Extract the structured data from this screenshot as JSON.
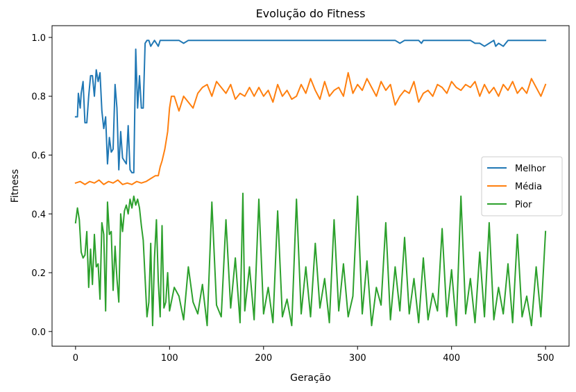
{
  "chart_data": {
    "type": "line",
    "title": "Evolução do Fitness",
    "xlabel": "Geração",
    "ylabel": "Fitness",
    "xlim": [
      -25,
      525
    ],
    "ylim": [
      -0.05,
      1.04
    ],
    "xticks": [
      0,
      100,
      200,
      300,
      400,
      500
    ],
    "yticks": [
      0.0,
      0.2,
      0.4,
      0.6,
      0.8,
      1.0
    ],
    "grid": false,
    "legend_position": "center-right",
    "series": [
      {
        "name": "Melhor",
        "color": "#1f77b4",
        "x": [
          0,
          2,
          3,
          5,
          6,
          8,
          10,
          12,
          14,
          16,
          18,
          20,
          22,
          24,
          26,
          28,
          30,
          32,
          34,
          36,
          38,
          40,
          42,
          44,
          46,
          48,
          50,
          52,
          54,
          56,
          58,
          60,
          62,
          64,
          66,
          68,
          70,
          72,
          74,
          76,
          78,
          80,
          82,
          84,
          86,
          88,
          90,
          95,
          100,
          110,
          115,
          120,
          150,
          200,
          250,
          300,
          340,
          345,
          350,
          365,
          368,
          370,
          380,
          400,
          420,
          425,
          430,
          435,
          440,
          445,
          447,
          450,
          455,
          460,
          480,
          500
        ],
        "y": [
          0.73,
          0.73,
          0.81,
          0.76,
          0.81,
          0.85,
          0.71,
          0.71,
          0.8,
          0.87,
          0.87,
          0.8,
          0.89,
          0.85,
          0.88,
          0.75,
          0.69,
          0.73,
          0.57,
          0.66,
          0.61,
          0.62,
          0.84,
          0.76,
          0.55,
          0.68,
          0.59,
          0.58,
          0.57,
          0.7,
          0.55,
          0.54,
          0.54,
          0.96,
          0.76,
          0.87,
          0.76,
          0.76,
          0.98,
          0.99,
          0.99,
          0.97,
          0.98,
          0.99,
          0.98,
          0.97,
          0.99,
          0.99,
          0.99,
          0.99,
          0.98,
          0.99,
          0.99,
          0.99,
          0.99,
          0.99,
          0.99,
          0.98,
          0.99,
          0.99,
          0.98,
          0.99,
          0.99,
          0.99,
          0.99,
          0.98,
          0.98,
          0.97,
          0.98,
          0.99,
          0.97,
          0.98,
          0.97,
          0.99,
          0.99,
          0.99
        ]
      },
      {
        "name": "Média",
        "color": "#ff7f0e",
        "x": [
          0,
          5,
          10,
          15,
          20,
          25,
          30,
          35,
          40,
          45,
          50,
          55,
          60,
          65,
          70,
          75,
          80,
          85,
          88,
          90,
          92,
          95,
          98,
          100,
          102,
          105,
          110,
          115,
          120,
          125,
          130,
          135,
          140,
          145,
          150,
          155,
          160,
          165,
          170,
          175,
          180,
          185,
          190,
          195,
          200,
          205,
          210,
          215,
          220,
          225,
          230,
          235,
          240,
          245,
          250,
          255,
          260,
          265,
          270,
          275,
          280,
          285,
          290,
          295,
          300,
          305,
          310,
          315,
          320,
          325,
          330,
          335,
          340,
          345,
          350,
          355,
          360,
          365,
          370,
          375,
          380,
          385,
          390,
          395,
          400,
          405,
          410,
          415,
          420,
          425,
          430,
          435,
          440,
          445,
          450,
          455,
          460,
          465,
          470,
          475,
          480,
          485,
          490,
          495,
          500
        ],
        "y": [
          0.505,
          0.51,
          0.5,
          0.51,
          0.505,
          0.515,
          0.5,
          0.51,
          0.505,
          0.515,
          0.5,
          0.505,
          0.5,
          0.51,
          0.505,
          0.51,
          0.52,
          0.53,
          0.53,
          0.56,
          0.58,
          0.62,
          0.68,
          0.76,
          0.8,
          0.8,
          0.75,
          0.8,
          0.78,
          0.76,
          0.81,
          0.83,
          0.84,
          0.8,
          0.85,
          0.83,
          0.81,
          0.84,
          0.79,
          0.81,
          0.8,
          0.83,
          0.8,
          0.83,
          0.8,
          0.82,
          0.78,
          0.84,
          0.8,
          0.82,
          0.79,
          0.8,
          0.84,
          0.81,
          0.86,
          0.82,
          0.79,
          0.85,
          0.8,
          0.82,
          0.83,
          0.8,
          0.88,
          0.81,
          0.84,
          0.82,
          0.86,
          0.83,
          0.8,
          0.85,
          0.82,
          0.84,
          0.77,
          0.8,
          0.82,
          0.81,
          0.85,
          0.78,
          0.81,
          0.82,
          0.8,
          0.84,
          0.83,
          0.81,
          0.85,
          0.83,
          0.82,
          0.84,
          0.83,
          0.85,
          0.8,
          0.84,
          0.81,
          0.83,
          0.8,
          0.84,
          0.82,
          0.85,
          0.81,
          0.83,
          0.81,
          0.86,
          0.83,
          0.8,
          0.84
        ]
      },
      {
        "name": "Pior",
        "color": "#2ca02c",
        "x": [
          0,
          2,
          4,
          6,
          8,
          10,
          12,
          14,
          16,
          18,
          20,
          22,
          24,
          26,
          28,
          30,
          32,
          34,
          36,
          38,
          40,
          42,
          44,
          46,
          48,
          50,
          52,
          54,
          56,
          58,
          60,
          62,
          64,
          66,
          68,
          70,
          72,
          74,
          76,
          78,
          80,
          82,
          84,
          86,
          88,
          90,
          92,
          94,
          96,
          98,
          100,
          105,
          110,
          115,
          120,
          125,
          130,
          135,
          140,
          145,
          150,
          155,
          160,
          165,
          170,
          175,
          178,
          180,
          185,
          190,
          195,
          200,
          205,
          210,
          215,
          220,
          225,
          230,
          235,
          240,
          245,
          250,
          255,
          260,
          265,
          270,
          275,
          280,
          285,
          290,
          295,
          300,
          305,
          310,
          315,
          320,
          325,
          330,
          335,
          340,
          345,
          350,
          355,
          360,
          365,
          370,
          375,
          380,
          385,
          390,
          395,
          400,
          405,
          410,
          415,
          420,
          425,
          430,
          435,
          440,
          445,
          450,
          455,
          460,
          465,
          470,
          475,
          480,
          485,
          490,
          495,
          500
        ],
        "y": [
          0.37,
          0.42,
          0.38,
          0.27,
          0.25,
          0.26,
          0.34,
          0.15,
          0.28,
          0.16,
          0.33,
          0.22,
          0.23,
          0.11,
          0.37,
          0.33,
          0.07,
          0.44,
          0.33,
          0.34,
          0.14,
          0.29,
          0.18,
          0.1,
          0.4,
          0.34,
          0.41,
          0.43,
          0.4,
          0.45,
          0.42,
          0.46,
          0.43,
          0.45,
          0.42,
          0.36,
          0.31,
          0.18,
          0.05,
          0.1,
          0.3,
          0.02,
          0.25,
          0.38,
          0.17,
          0.05,
          0.36,
          0.08,
          0.1,
          0.2,
          0.07,
          0.15,
          0.12,
          0.04,
          0.22,
          0.1,
          0.06,
          0.16,
          0.02,
          0.44,
          0.09,
          0.05,
          0.38,
          0.08,
          0.25,
          0.03,
          0.47,
          0.07,
          0.22,
          0.04,
          0.45,
          0.06,
          0.15,
          0.03,
          0.41,
          0.05,
          0.11,
          0.02,
          0.45,
          0.06,
          0.22,
          0.05,
          0.3,
          0.08,
          0.18,
          0.03,
          0.38,
          0.07,
          0.23,
          0.05,
          0.12,
          0.46,
          0.06,
          0.24,
          0.02,
          0.15,
          0.09,
          0.37,
          0.04,
          0.22,
          0.07,
          0.32,
          0.06,
          0.18,
          0.03,
          0.25,
          0.04,
          0.13,
          0.07,
          0.35,
          0.05,
          0.21,
          0.02,
          0.46,
          0.06,
          0.18,
          0.03,
          0.27,
          0.05,
          0.37,
          0.04,
          0.15,
          0.06,
          0.23,
          0.03,
          0.33,
          0.05,
          0.12,
          0.02,
          0.22,
          0.05,
          0.34
        ]
      }
    ]
  }
}
